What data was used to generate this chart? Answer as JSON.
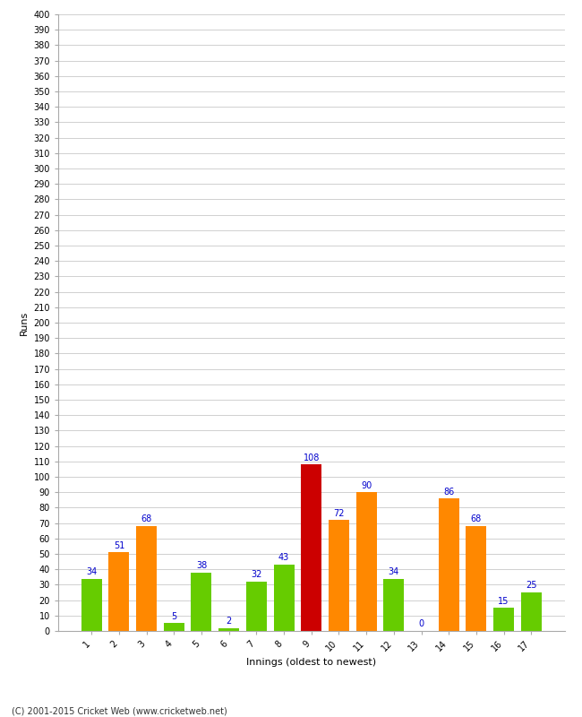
{
  "innings": [
    1,
    2,
    3,
    4,
    5,
    6,
    7,
    8,
    9,
    10,
    11,
    12,
    13,
    14,
    15,
    16,
    17
  ],
  "values": [
    34,
    51,
    68,
    5,
    38,
    2,
    32,
    43,
    108,
    72,
    90,
    34,
    0,
    86,
    68,
    15,
    25
  ],
  "colors": [
    "#66cc00",
    "#ff8800",
    "#ff8800",
    "#66cc00",
    "#66cc00",
    "#66cc00",
    "#66cc00",
    "#66cc00",
    "#cc0000",
    "#ff8800",
    "#ff8800",
    "#66cc00",
    "#66cc00",
    "#ff8800",
    "#ff8800",
    "#66cc00",
    "#66cc00"
  ],
  "xlabel": "Innings (oldest to newest)",
  "ylabel": "Runs",
  "ylim": [
    0,
    400
  ],
  "ytick_step": 10,
  "label_color": "#0000cc",
  "label_fontsize": 7,
  "axis_label_fontsize": 8,
  "tick_fontsize": 7,
  "footer": "(C) 2001-2015 Cricket Web (www.cricketweb.net)",
  "bg_color": "#ffffff",
  "grid_color": "#d0d0d0",
  "bar_width": 0.75
}
